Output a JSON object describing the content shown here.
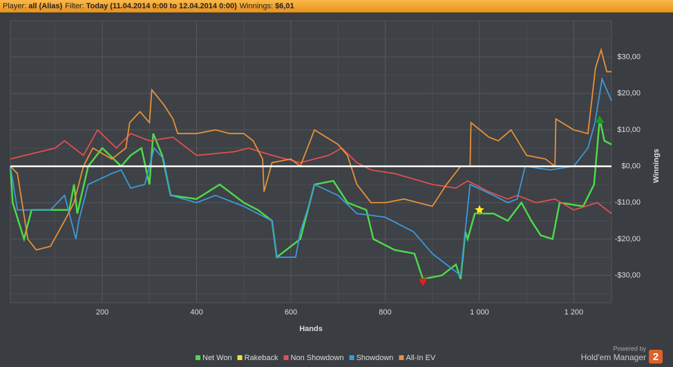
{
  "header": [
    {
      "label": "Player:",
      "value": "all (Alias)"
    },
    {
      "label": "Filter:",
      "value": "Today (11.04.2014 0:00 to 12.04.2014 0:00)"
    },
    {
      "label": "Winnings:",
      "value": "$6,01"
    }
  ],
  "branding": {
    "caption": "Powered by",
    "name": "Hold'em Manager",
    "badge": "2"
  },
  "chart_data": {
    "type": "line",
    "xlabel": "Hands",
    "ylabel": "Winnings",
    "xlim": [
      5,
      1280
    ],
    "ylim": [
      -37.5,
      40
    ],
    "xticks": [
      200,
      400,
      600,
      {
        "value": 800,
        "label": "800"
      },
      {
        "value": 1000,
        "label": "1 000"
      },
      {
        "value": 1200,
        "label": "1 200"
      }
    ],
    "xminor": [
      100,
      300,
      500,
      700,
      900,
      1100
    ],
    "yticks": [
      {
        "value": -30,
        "label": "-$30,00"
      },
      {
        "value": -20,
        "label": "-$20,00"
      },
      {
        "value": -10,
        "label": "-$10,00"
      },
      {
        "value": 0,
        "label": "$0,00"
      },
      {
        "value": 10,
        "label": "$10,00"
      },
      {
        "value": 20,
        "label": "$20,00"
      },
      {
        "value": 30,
        "label": "$30,00"
      }
    ],
    "yminor": [
      -35,
      -25,
      -15,
      -5,
      5,
      15,
      25,
      35
    ],
    "grid": true,
    "series": [
      {
        "name": "Net Won",
        "color": "#4cd94c",
        "x": [
          5,
          10,
          34,
          50,
          130,
          140,
          147,
          170,
          200,
          240,
          260,
          283,
          300,
          308,
          327,
          345,
          400,
          449,
          500,
          530,
          560,
          570,
          620,
          640,
          650,
          690,
          720,
          760,
          775,
          820,
          862,
          880,
          920,
          950,
          960,
          970,
          975,
          990,
          1030,
          1060,
          1089,
          1110,
          1130,
          1155,
          1170,
          1220,
          1243,
          1255,
          1265,
          1280
        ],
        "values": [
          0,
          -10,
          -20,
          -12,
          -12,
          -5,
          -13,
          0,
          5,
          0,
          3,
          5,
          -5,
          9,
          3,
          -8,
          -9,
          -5,
          -10,
          -12,
          -15,
          -25,
          -20,
          -10,
          -5,
          -4,
          -10,
          -12,
          -20,
          -23,
          -24,
          -31,
          -30,
          -27,
          -31,
          -18,
          -20,
          -13,
          -13,
          -15,
          -10,
          -15,
          -19,
          -20,
          -10,
          -11,
          -5,
          13,
          7,
          6
        ]
      },
      {
        "name": "Rakeback",
        "color": "#f0e040",
        "x": [
          5,
          1280
        ],
        "values": [
          0,
          0
        ]
      },
      {
        "name": "Non Showdown",
        "color": "#e05050",
        "x": [
          5,
          100,
          120,
          160,
          190,
          230,
          260,
          300,
          350,
          400,
          480,
          510,
          560,
          620,
          680,
          708,
          740,
          770,
          820,
          900,
          950,
          975,
          1020,
          1060,
          1080,
          1120,
          1160,
          1200,
          1250,
          1280
        ],
        "values": [
          2,
          5,
          7,
          3,
          10,
          5,
          9,
          7,
          8,
          3,
          4,
          5,
          3,
          1,
          3,
          5,
          1,
          -1,
          -2,
          -5,
          -6,
          -4,
          -7,
          -9,
          -8,
          -10,
          -9,
          -12,
          -10,
          -13
        ]
      },
      {
        "name": "Showdown",
        "color": "#3a9ae0",
        "x": [
          5,
          20,
          90,
          120,
          144,
          150,
          170,
          220,
          240,
          260,
          290,
          310,
          330,
          345,
          400,
          440,
          500,
          530,
          560,
          570,
          610,
          620,
          640,
          650,
          700,
          740,
          800,
          860,
          900,
          960,
          980,
          1030,
          1060,
          1080,
          1097,
          1150,
          1200,
          1230,
          1245,
          1255,
          1260,
          1280
        ],
        "values": [
          0,
          -12,
          -12,
          -8,
          -20,
          -15,
          -5,
          -2,
          -1,
          -6,
          -5,
          5,
          2,
          -8,
          -10,
          -8,
          -11,
          -13,
          -15,
          -25,
          -25,
          -18,
          -10,
          -5,
          -8,
          -13,
          -14,
          -18,
          -24,
          -30,
          -5,
          -8,
          -10,
          -9,
          0,
          -1,
          0,
          5,
          12,
          20,
          24,
          18
        ]
      },
      {
        "name": "All-In EV",
        "color": "#e8913a",
        "x": [
          5,
          20,
          42,
          60,
          90,
          120,
          140,
          160,
          180,
          220,
          250,
          258,
          280,
          300,
          305,
          330,
          350,
          360,
          400,
          440,
          470,
          500,
          520,
          540,
          543,
          560,
          600,
          620,
          650,
          700,
          720,
          740,
          770,
          800,
          840,
          870,
          900,
          930,
          960,
          980,
          982,
          1020,
          1040,
          1067,
          1100,
          1140,
          1160,
          1162,
          1200,
          1230,
          1246,
          1258,
          1270,
          1280
        ],
        "values": [
          0,
          -2,
          -20,
          -23,
          -22,
          -15,
          -10,
          0,
          5,
          2,
          5,
          12,
          15,
          12,
          21,
          17,
          13,
          9,
          9,
          10,
          9,
          9,
          7,
          2,
          -7,
          1,
          2,
          0,
          10,
          6,
          3,
          -5,
          -10,
          -10,
          -9,
          -10,
          -11,
          -5,
          0,
          0,
          12,
          8,
          7,
          10,
          3,
          2,
          0,
          13,
          10,
          9,
          27,
          32,
          26,
          26
        ]
      }
    ],
    "markers": [
      {
        "x": 1000,
        "y": -12,
        "color": "#ffee22",
        "shape": "star"
      },
      {
        "x": 880,
        "y": -32,
        "color": "#e02020",
        "shape": "down"
      },
      {
        "x": 1255,
        "y": 13,
        "color": "#1a9a2a",
        "shape": "up"
      }
    ]
  }
}
